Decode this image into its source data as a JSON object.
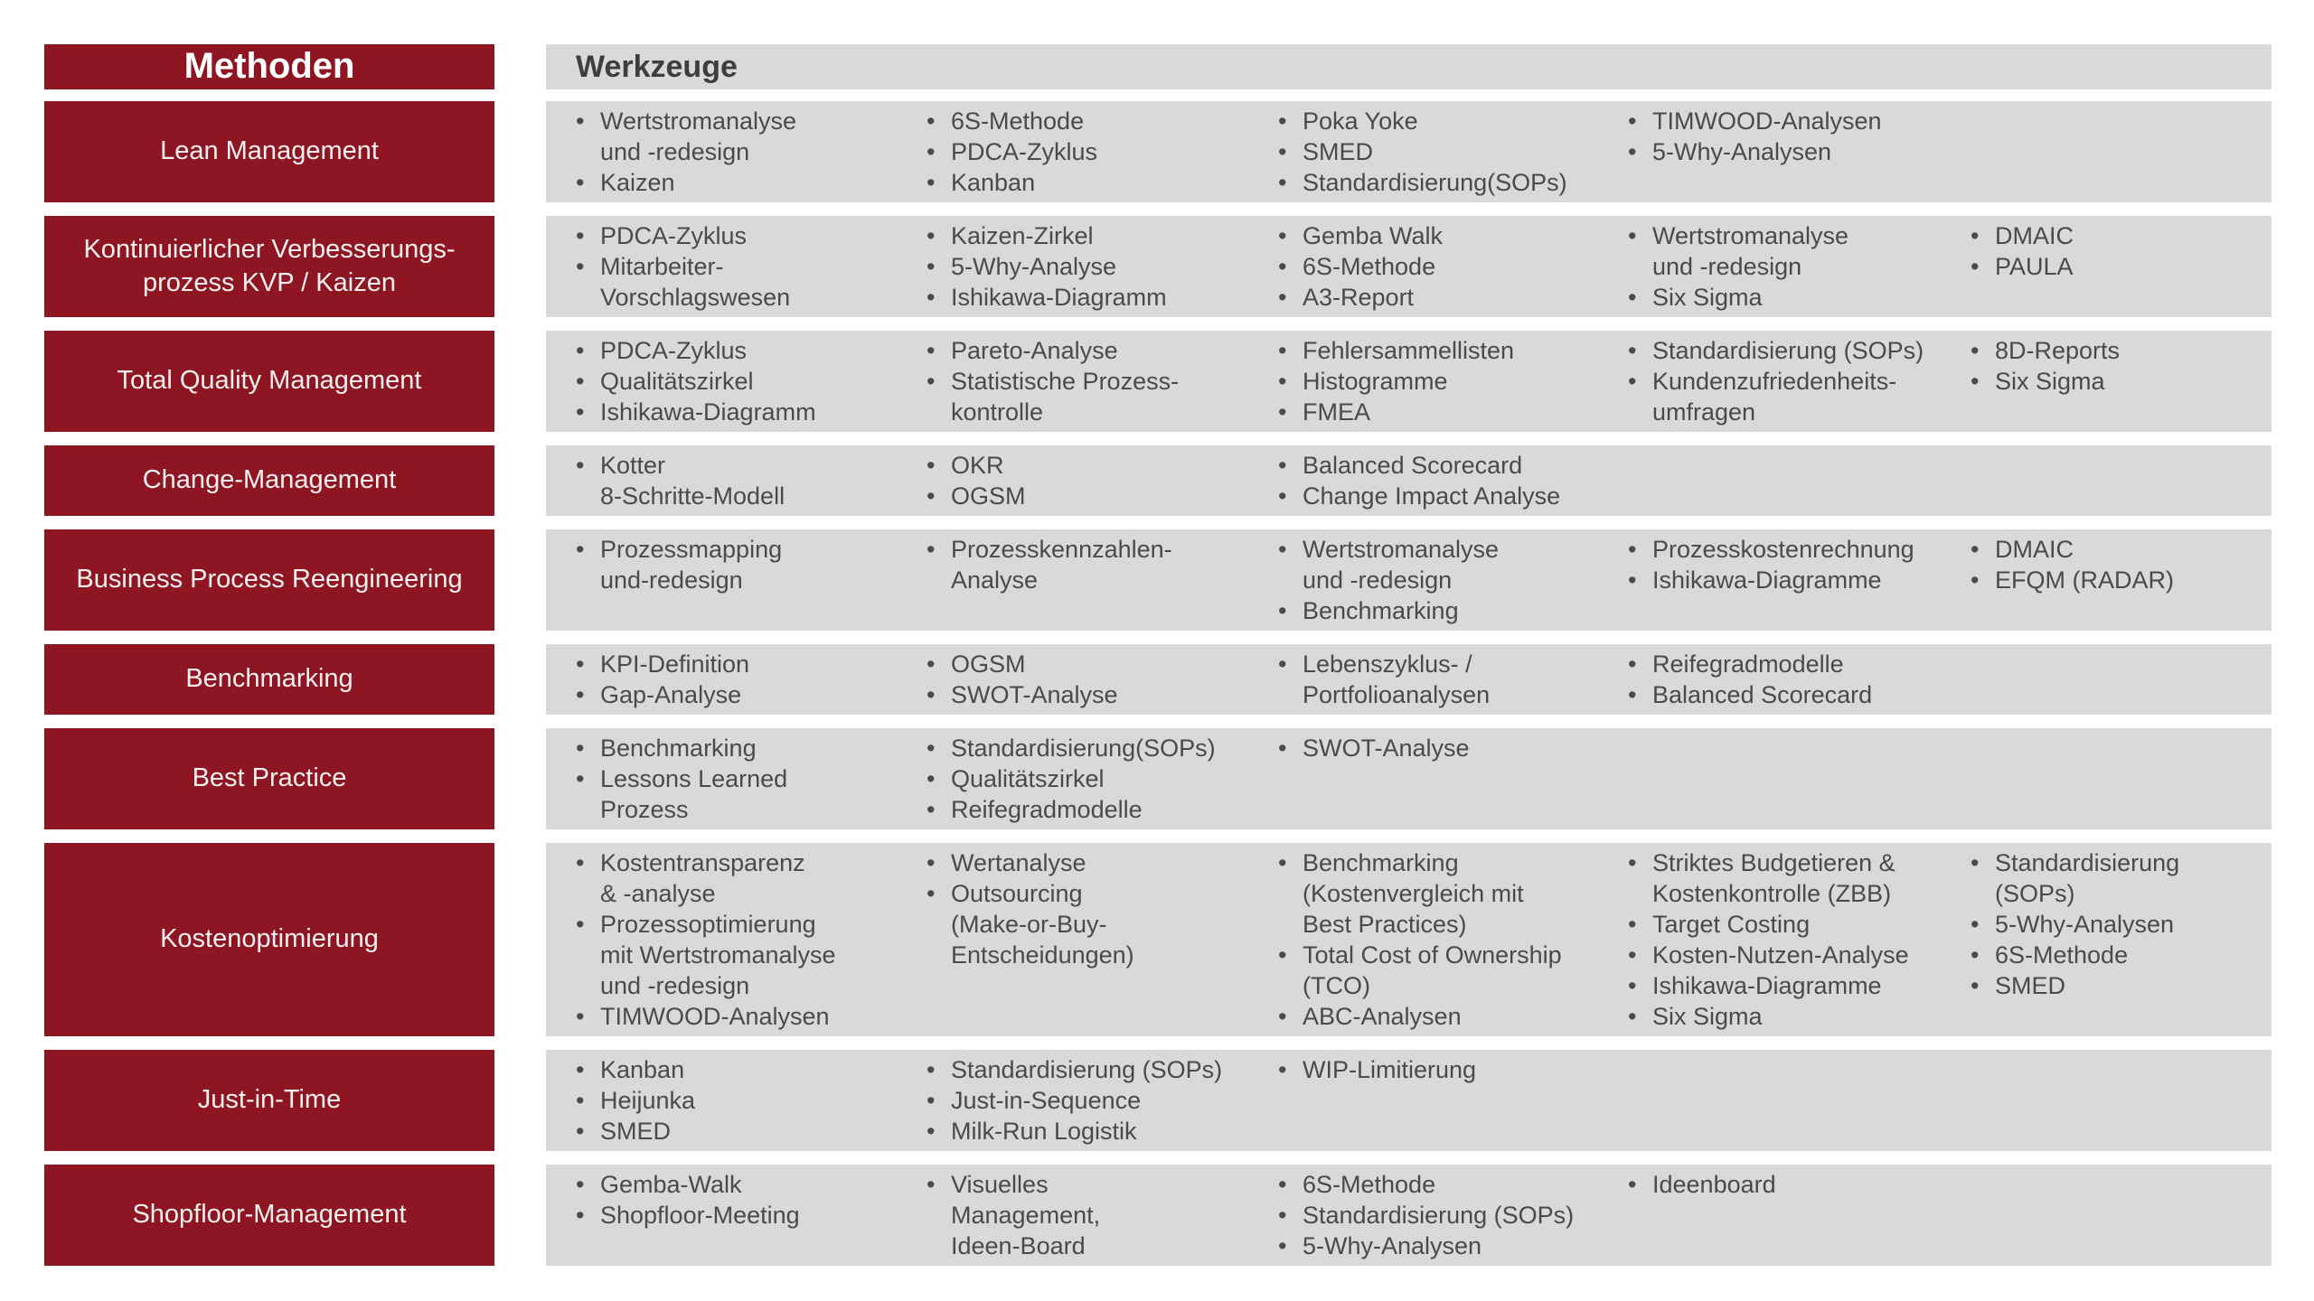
{
  "header": {
    "methods_title": "Methoden",
    "tools_title": "Werkzeuge"
  },
  "colors": {
    "method_red": "#8E1622",
    "band_gray": "#D9D9D9",
    "tool_text_gray": "#4A4A4A"
  },
  "bullet_glyph": "•",
  "rows": [
    {
      "method": "Lean Management",
      "tools": [
        [
          "Wertstromanalyse\nund -redesign",
          "Kaizen"
        ],
        [
          "6S-Methode",
          "PDCA-Zyklus",
          "Kanban"
        ],
        [
          "Poka Yoke",
          "SMED",
          "Standardisierung(SOPs)"
        ],
        [
          "TIMWOOD-Analysen",
          "5-Why-Analysen"
        ],
        []
      ]
    },
    {
      "method": "Kontinuierlicher Verbesserungs-\nprozess KVP / Kaizen",
      "tools": [
        [
          "PDCA-Zyklus",
          "Mitarbeiter-\nVorschlagswesen"
        ],
        [
          "Kaizen-Zirkel",
          "5-Why-Analyse",
          "Ishikawa-Diagramm"
        ],
        [
          "Gemba Walk",
          "6S-Methode",
          "A3-Report"
        ],
        [
          "Wertstromanalyse\nund -redesign",
          "Six Sigma"
        ],
        [
          "DMAIC",
          "PAULA"
        ]
      ]
    },
    {
      "method": "Total Quality Management",
      "tools": [
        [
          "PDCA-Zyklus",
          "Qualitätszirkel",
          "Ishikawa-Diagramm"
        ],
        [
          "Pareto-Analyse",
          "Statistische Prozess-\nkontrolle"
        ],
        [
          "Fehlersammellisten",
          "Histogramme",
          "FMEA"
        ],
        [
          "Standardisierung (SOPs)",
          "Kundenzufriedenheits-\numfragen"
        ],
        [
          "8D-Reports",
          "Six Sigma"
        ]
      ]
    },
    {
      "method": "Change-Management",
      "tools": [
        [
          "Kotter\n8-Schritte-Modell"
        ],
        [
          "OKR",
          "OGSM"
        ],
        [
          "Balanced Scorecard",
          "Change Impact Analyse"
        ],
        [],
        []
      ]
    },
    {
      "method": "Business Process Reengineering",
      "tools": [
        [
          "Prozessmapping\nund-redesign"
        ],
        [
          "Prozesskennzahlen-\nAnalyse"
        ],
        [
          "Wertstromanalyse\nund -redesign",
          "Benchmarking"
        ],
        [
          "Prozesskostenrechnung",
          "Ishikawa-Diagramme"
        ],
        [
          "DMAIC",
          "EFQM (RADAR)"
        ]
      ]
    },
    {
      "method": "Benchmarking",
      "tools": [
        [
          "KPI-Definition",
          "Gap-Analyse"
        ],
        [
          "OGSM",
          "SWOT-Analyse"
        ],
        [
          "Lebenszyklus- /\nPortfolioanalysen"
        ],
        [
          "Reifegradmodelle",
          "Balanced Scorecard"
        ],
        []
      ]
    },
    {
      "method": "Best Practice",
      "tools": [
        [
          "Benchmarking",
          "Lessons Learned\nProzess"
        ],
        [
          "Standardisierung(SOPs)",
          "Qualitätszirkel",
          "Reifegradmodelle"
        ],
        [
          "SWOT-Analyse"
        ],
        [],
        []
      ]
    },
    {
      "method": "Kostenoptimierung",
      "tools": [
        [
          "Kostentransparenz\n& -analyse",
          "Prozessoptimierung\nmit Wertstromanalyse\nund -redesign",
          "TIMWOOD-Analysen"
        ],
        [
          "Wertanalyse",
          "Outsourcing\n(Make-or-Buy-\nEntscheidungen)"
        ],
        [
          "Benchmarking\n(Kostenvergleich mit\nBest Practices)",
          "Total Cost of Ownership\n(TCO)",
          "ABC-Analysen"
        ],
        [
          "Striktes Budgetieren &\nKostenkontrolle (ZBB)",
          "Target Costing",
          "Kosten-Nutzen-Analyse",
          "Ishikawa-Diagramme",
          "Six Sigma"
        ],
        [
          "Standardisierung\n(SOPs)",
          "5-Why-Analysen",
          "6S-Methode",
          "SMED"
        ]
      ]
    },
    {
      "method": "Just-in-Time",
      "tools": [
        [
          "Kanban",
          "Heijunka",
          "SMED"
        ],
        [
          "Standardisierung (SOPs)",
          "Just-in-Sequence",
          "Milk-Run Logistik"
        ],
        [
          "WIP-Limitierung"
        ],
        [],
        []
      ]
    },
    {
      "method": "Shopfloor-Management",
      "tools": [
        [
          "Gemba-Walk",
          "Shopfloor-Meeting"
        ],
        [
          "Visuelles\nManagement,\nIdeen-Board"
        ],
        [
          "6S-Methode",
          "Standardisierung (SOPs)",
          "5-Why-Analysen"
        ],
        [
          "Ideenboard"
        ],
        []
      ]
    }
  ]
}
